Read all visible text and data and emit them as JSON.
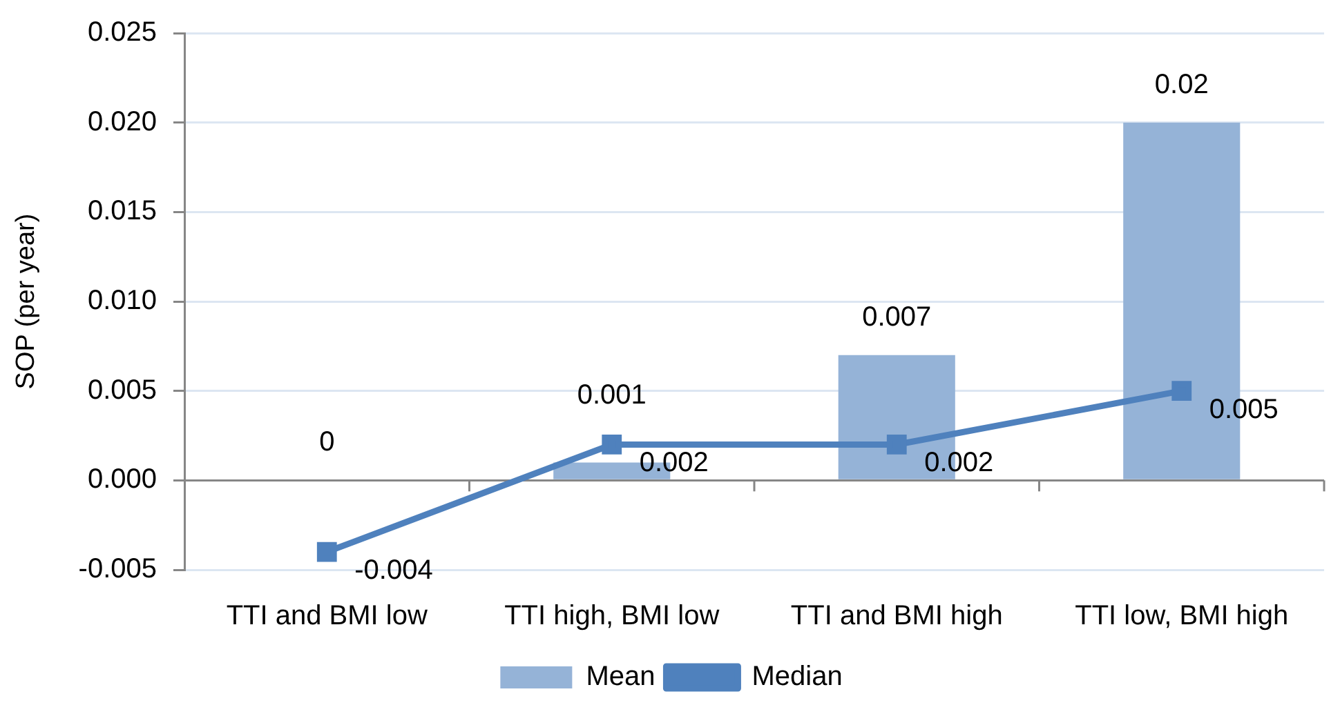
{
  "chart_data": {
    "type": "bar",
    "ylabel": "SOP (per year)",
    "categories": [
      "TTI and BMI low",
      "TTI high, BMI low",
      "TTI and BMI high",
      "TTI low, BMI high"
    ],
    "series": [
      {
        "name": "Mean",
        "color": "#95b3d7",
        "values": [
          0,
          0.001,
          0.007,
          0.02
        ]
      },
      {
        "name": "Median",
        "type": "line",
        "color": "#4f81bd",
        "marker": "square",
        "values": [
          -0.004,
          0.002,
          0.002,
          0.005
        ]
      }
    ],
    "ylim": [
      -0.005,
      0.025
    ],
    "yticks": [
      -0.005,
      {
        "value": 0,
        "label": "0.000"
      },
      0.005,
      {
        "value": 0.01,
        "label": "0.010"
      },
      0.015,
      {
        "value": 0.02,
        "label": "0.020"
      },
      0.025
    ],
    "grid": "y",
    "legend": "bottom",
    "data_labels": true
  }
}
